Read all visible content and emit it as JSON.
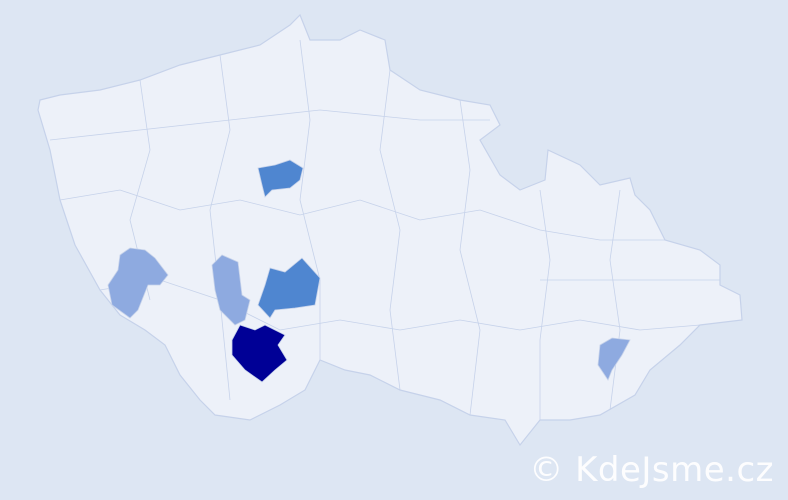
{
  "map": {
    "colors": {
      "background": "#dde6f3",
      "land": "#edf1f9",
      "border": "#c6d2ea",
      "level_high": "#000096",
      "level_mid": "#4f86d0",
      "level_low": "#8eaae0"
    },
    "highlighted_districts": [
      {
        "level": "high"
      },
      {
        "level": "mid"
      },
      {
        "level": "mid"
      },
      {
        "level": "low"
      },
      {
        "level": "low"
      },
      {
        "level": "low"
      }
    ]
  },
  "watermark": {
    "text": "© KdeJsme.cz"
  }
}
